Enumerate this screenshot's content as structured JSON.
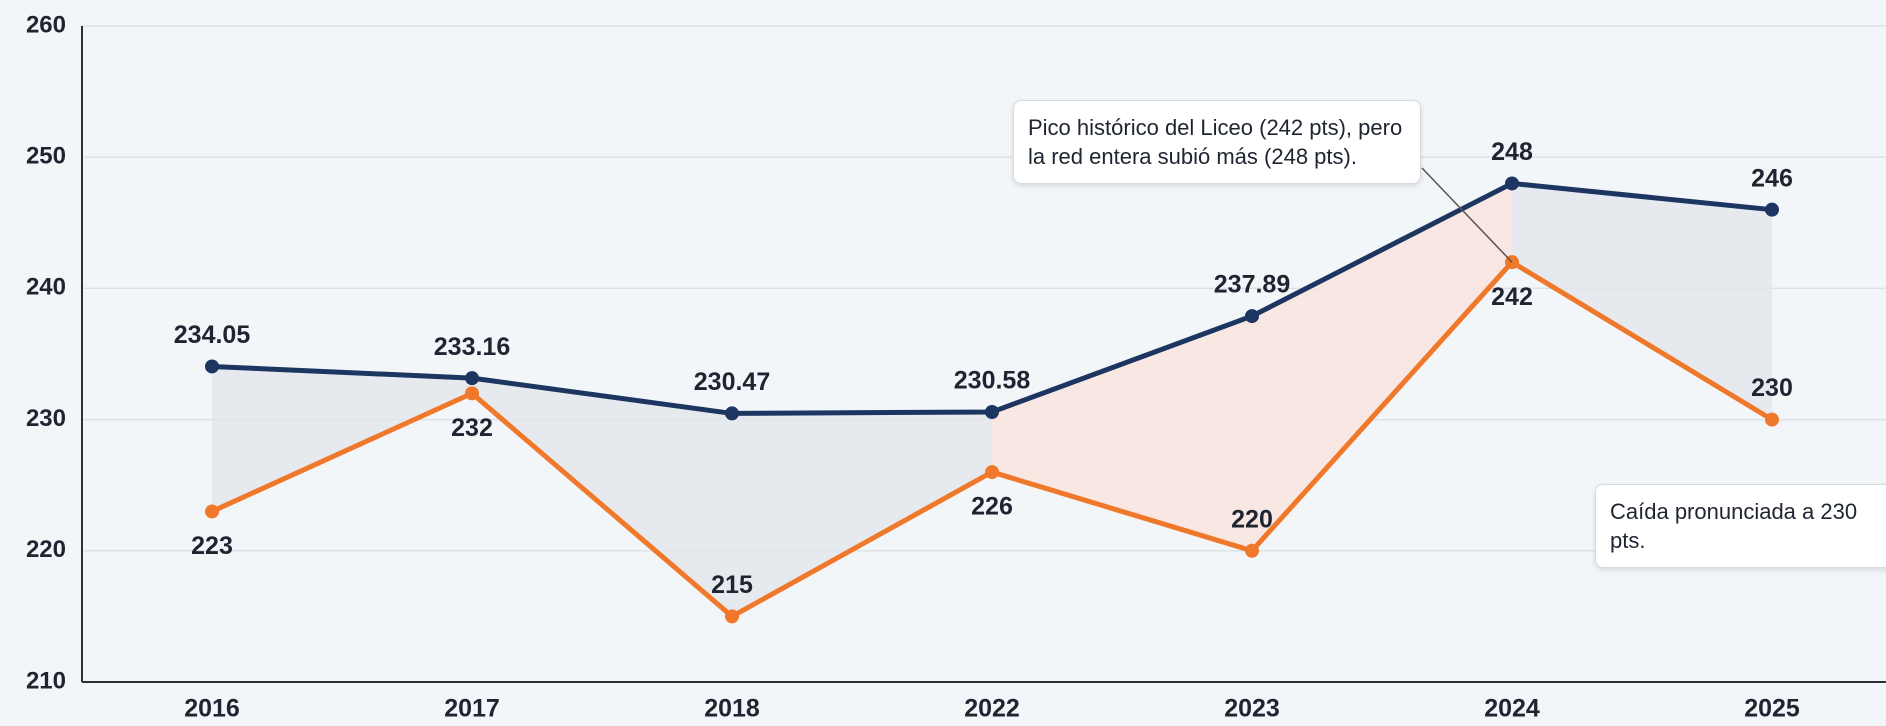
{
  "chart_data": {
    "type": "line",
    "categories": [
      "2016",
      "2017",
      "2018",
      "2022",
      "2023",
      "2024",
      "2025"
    ],
    "series": [
      {
        "color": "#1d3661",
        "values": [
          234.05,
          233.16,
          230.47,
          230.58,
          237.89,
          248,
          246
        ],
        "label_side": "above"
      },
      {
        "color": "#f0782a",
        "values": [
          223,
          232,
          215,
          226,
          220,
          242,
          230
        ],
        "label_side": "below"
      }
    ],
    "ylim": [
      210,
      260
    ],
    "yticks": [
      210,
      220,
      230,
      240,
      250,
      260
    ],
    "grid": true,
    "annotations": [
      {
        "text": "Pico histórico del Liceo (242 pts), pero la red entera subió más (248 pts).",
        "category": "2024"
      },
      {
        "text": "Caída pronunciada a 230 pts.",
        "category": "2025"
      }
    ]
  }
}
